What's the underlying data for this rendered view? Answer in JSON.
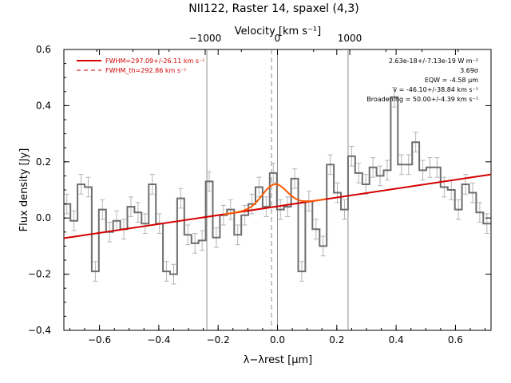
{
  "chart_data": {
    "type": "line",
    "title": "NII122, Raster 14, spaxel (4,3)",
    "xlabel": "λ−λrest [μm]",
    "ylabel": "Flux density [Jy]",
    "x2label": "Velocity [km s⁻¹]",
    "xlim": [
      -0.72,
      0.72
    ],
    "ylim": [
      -0.4,
      0.6
    ],
    "x2lim": [
      -2955,
      2955
    ],
    "xticks": [
      -0.6,
      -0.4,
      -0.2,
      0.0,
      0.2,
      0.4,
      0.6
    ],
    "xtick_labels": [
      "−0.6",
      "−0.4",
      "−0.2",
      "0.0",
      "0.2",
      "0.4",
      "0.6"
    ],
    "yticks": [
      -0.4,
      -0.2,
      0.0,
      0.2,
      0.4,
      0.6
    ],
    "ytick_labels": [
      "−0.4",
      "−0.2",
      "0.0",
      "0.2",
      "0.4",
      "0.6"
    ],
    "x2ticks": [
      -1000,
      0,
      1000
    ],
    "x2tick_labels": [
      "−1000",
      "0",
      "1000"
    ],
    "grid": false,
    "legend_position": "top-left",
    "colors": {
      "data": "#6e6e6e",
      "errorbar": "#b4b4b4",
      "fit": "#d40000",
      "gaussian": "#ff5a00",
      "vline": "#8c8c8c"
    },
    "vertical_lines": [
      -0.238,
      -0.02,
      0.0,
      0.238
    ],
    "series": [
      {
        "kind": "step",
        "x": [
          -0.71,
          -0.686,
          -0.662,
          -0.638,
          -0.614,
          -0.59,
          -0.566,
          -0.542,
          -0.518,
          -0.494,
          -0.47,
          -0.446,
          -0.422,
          -0.398,
          -0.374,
          -0.35,
          -0.326,
          -0.302,
          -0.278,
          -0.254,
          -0.23,
          -0.206,
          -0.182,
          -0.158,
          -0.134,
          -0.11,
          -0.086,
          -0.062,
          -0.038,
          -0.014,
          0.01,
          0.034,
          0.058,
          0.082,
          0.106,
          0.13,
          0.154,
          0.178,
          0.202,
          0.226,
          0.25,
          0.274,
          0.298,
          0.322,
          0.346,
          0.37,
          0.394,
          0.418,
          0.442,
          0.466,
          0.49,
          0.514,
          0.538,
          0.562,
          0.586,
          0.61,
          0.634,
          0.658,
          0.682,
          0.706
        ],
        "y": [
          0.05,
          -0.01,
          0.12,
          0.11,
          -0.19,
          0.03,
          -0.05,
          -0.01,
          -0.04,
          0.04,
          0.02,
          -0.02,
          0.12,
          -0.02,
          -0.19,
          -0.2,
          0.07,
          -0.06,
          -0.09,
          -0.08,
          0.13,
          -0.07,
          0.01,
          0.03,
          -0.06,
          0.01,
          0.05,
          0.11,
          0.04,
          0.16,
          0.03,
          0.04,
          0.14,
          -0.19,
          0.06,
          -0.04,
          -0.1,
          0.19,
          0.09,
          0.03,
          0.22,
          0.16,
          0.12,
          0.18,
          0.15,
          0.17,
          0.43,
          0.19,
          0.19,
          0.27,
          0.17,
          0.18,
          0.18,
          0.11,
          0.1,
          0.03,
          0.12,
          0.09,
          0.02,
          -0.02
        ],
        "yerr": 0.035
      },
      {
        "kind": "linear_continuum",
        "x": [
          -0.72,
          0.72
        ],
        "y": [
          -0.072,
          0.155
        ]
      },
      {
        "kind": "gaussian_fit",
        "center": -0.01,
        "peak": 0.08,
        "sigma": 0.041
      }
    ],
    "legend": [
      {
        "label": "FWHM=297.09+/-26.11 km s⁻¹",
        "style": "solid"
      },
      {
        "label": "FWHM_th=292.86 km s⁻¹",
        "style": "dashed"
      }
    ],
    "annotations": [
      "2.63e-18+/-7.13e-19 W m⁻²",
      "3.69σ",
      "EQW = -4.58 μm",
      "v = -46.10+/-38.84 km s⁻¹",
      "Broadening = 50.00+/-4.39 km s⁻¹"
    ]
  }
}
